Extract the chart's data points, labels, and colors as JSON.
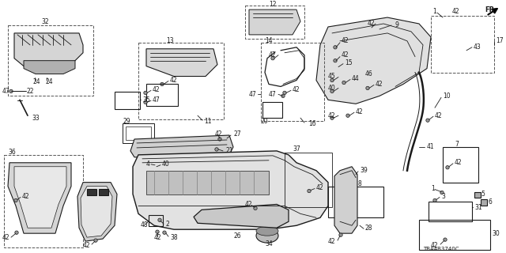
{
  "bg_color": "#ffffff",
  "diagram_code": "TBA4B3740C",
  "fig_width": 6.4,
  "fig_height": 3.2,
  "dpi": 100,
  "line_color": "#1a1a1a",
  "part_gray": "#c8c8c8",
  "part_dark": "#888888",
  "label_fs": 5.5,
  "lw_part": 1.0,
  "lw_thin": 0.6
}
